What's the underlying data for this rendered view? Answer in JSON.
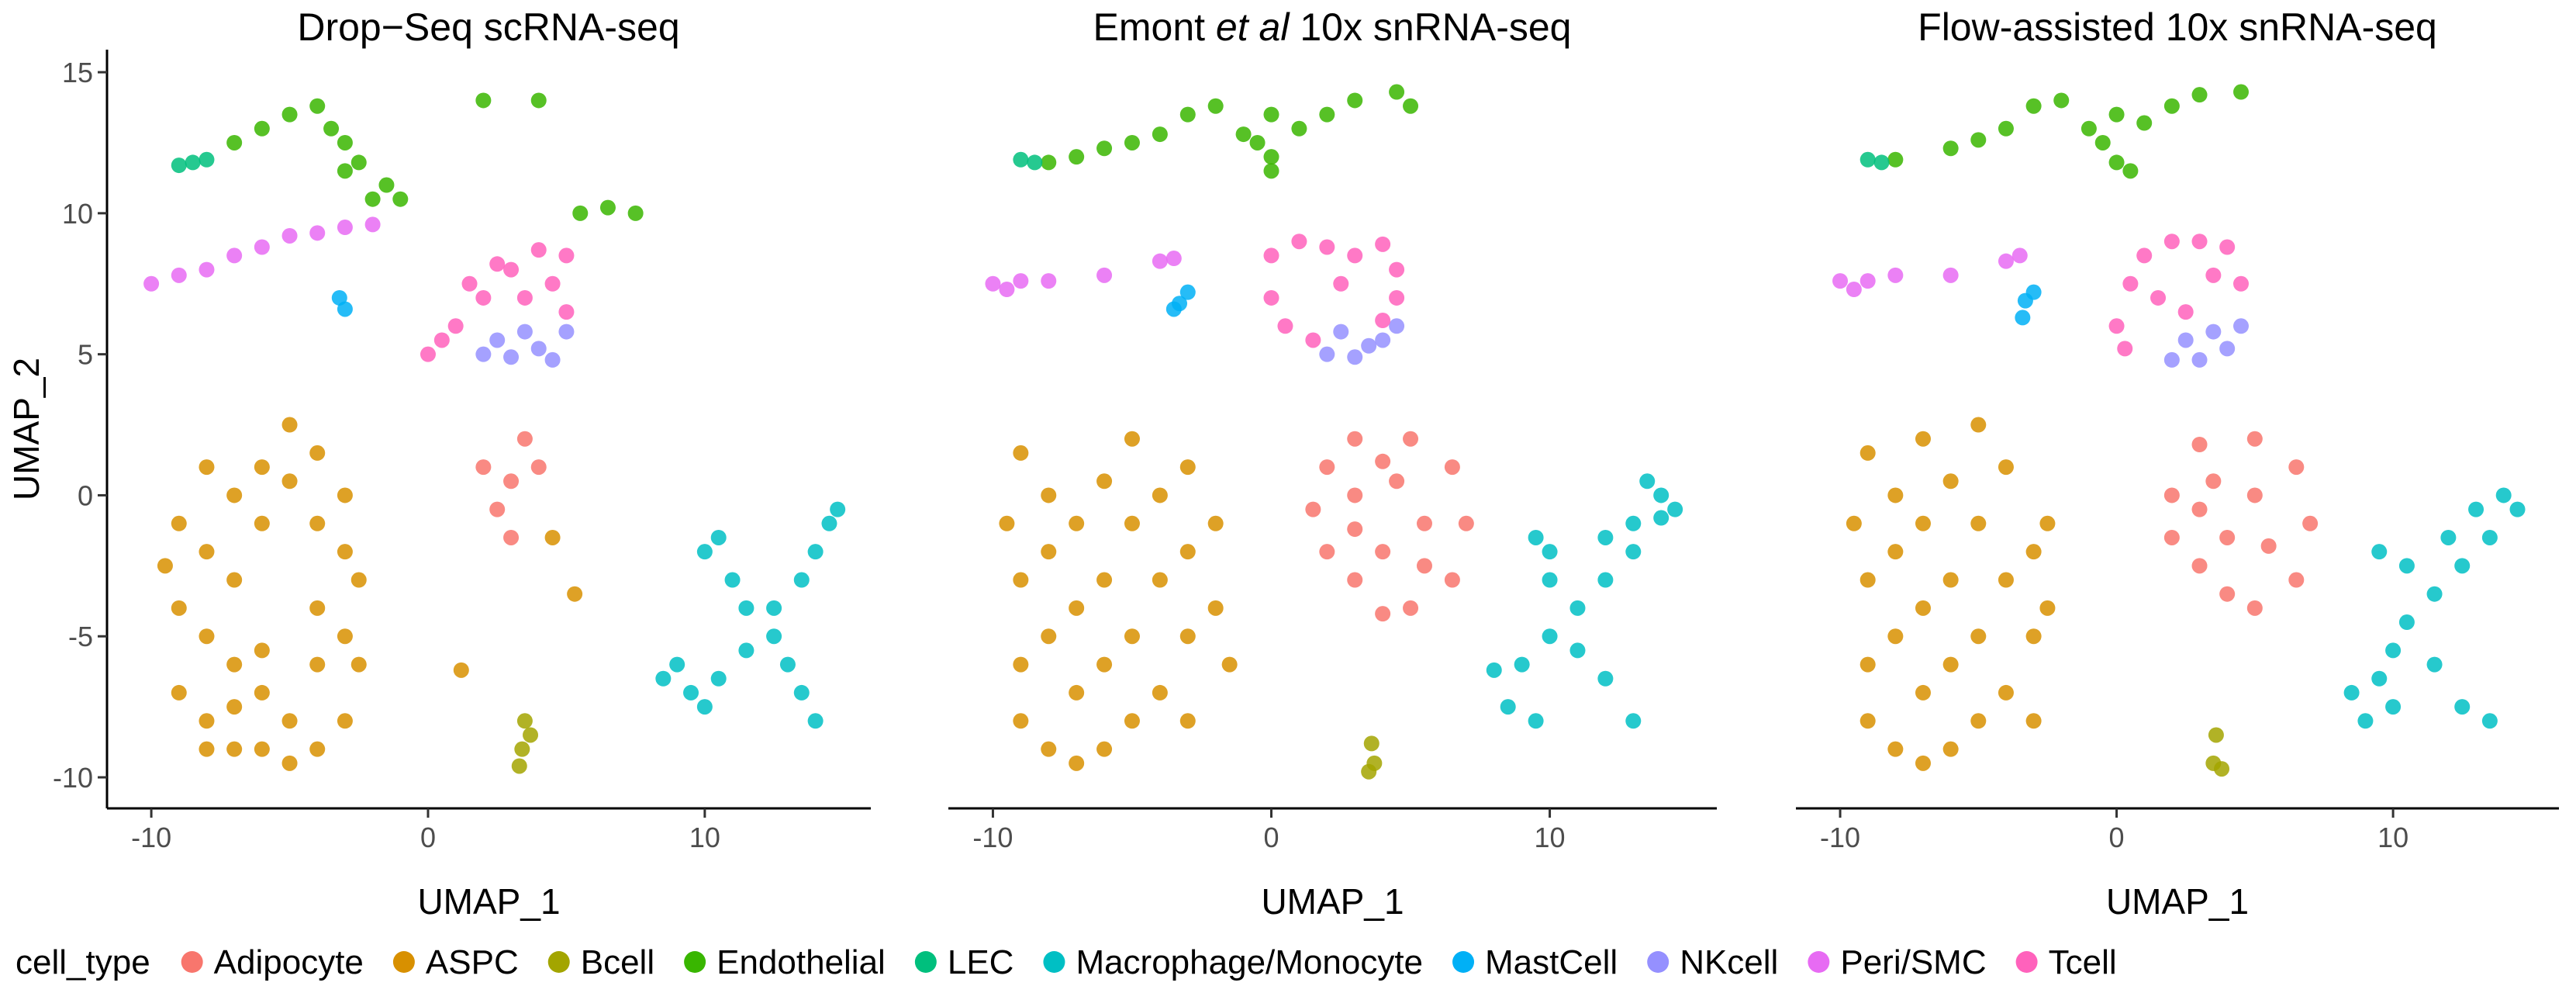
{
  "chart_data": [
    {
      "type": "scatter",
      "title": "Drop−Seq scRNA-seq",
      "xlabel": "UMAP_1",
      "ylabel": "UMAP_2",
      "xlim": [
        -11.6,
        16.0
      ],
      "ylim": [
        -11.1,
        15.8
      ],
      "xticks": [
        -10,
        0,
        10
      ],
      "yticks": [
        -10,
        -5,
        0,
        5,
        10,
        15
      ],
      "series": [
        {
          "x": [
            2,
            3,
            3.5,
            2.5,
            3,
            4
          ],
          "y": [
            1,
            0.5,
            2,
            -0.5,
            -1.5,
            1
          ]
        },
        {
          "x": [
            -9,
            -9,
            -9,
            -8,
            -8,
            -8,
            -8,
            -8,
            -7,
            -7,
            -7,
            -7,
            -6,
            -6,
            -6,
            -6,
            -5,
            -5,
            -5,
            -5,
            -4,
            -4,
            -4,
            -4,
            -4,
            -3,
            -3,
            -3,
            -3,
            -2.5,
            -2.5,
            -9.5,
            -7,
            -6,
            4.5,
            5.3,
            1.2
          ],
          "y": [
            -1,
            -4,
            -7,
            1,
            -2,
            -5,
            -8,
            -9,
            0,
            -3,
            -6,
            -9,
            1,
            -1,
            -7,
            -9,
            2.5,
            0.5,
            -8,
            -9.5,
            1.5,
            -1,
            -4,
            -6,
            -9,
            0,
            -2,
            -5,
            -8,
            -3,
            -6,
            -2.5,
            -7.5,
            -5.5,
            -1.5,
            -3.5,
            -6.2
          ]
        },
        {
          "x": [
            3.5,
            3.4,
            3.3,
            3.7
          ],
          "y": [
            -8,
            -9,
            -9.6,
            -8.5
          ]
        },
        {
          "x": [
            -5,
            -4,
            -3.5,
            -6,
            -3,
            -2,
            -2.5,
            -1.5,
            -7,
            2,
            4,
            5.5,
            6.5,
            7.5,
            -3,
            -1
          ],
          "y": [
            13.5,
            13.8,
            13,
            13,
            11.5,
            10.5,
            11.8,
            11,
            12.5,
            14,
            14,
            10,
            10.2,
            10,
            12.5,
            10.5
          ]
        },
        {
          "x": [
            -8.5,
            -8,
            -9
          ],
          "y": [
            11.8,
            11.9,
            11.7
          ]
        },
        {
          "x": [
            10,
            10.5,
            11,
            11.5,
            12.5,
            13,
            13.5,
            14,
            14.5,
            14,
            13.5,
            12.5,
            11.5,
            10.5,
            9.5,
            8.5,
            9,
            10,
            14.8
          ],
          "y": [
            -2,
            -1.5,
            -3,
            -4,
            -5,
            -6,
            -7,
            -8,
            -1,
            -2,
            -3,
            -4,
            -5.5,
            -6.5,
            -7,
            -6.5,
            -6,
            -7.5,
            -0.5
          ]
        },
        {
          "x": [
            -3.2,
            -3
          ],
          "y": [
            7,
            6.6
          ]
        },
        {
          "x": [
            2,
            3,
            4,
            5,
            3.5,
            2.5,
            4.5
          ],
          "y": [
            5,
            4.9,
            5.2,
            5.8,
            5.8,
            5.5,
            4.8
          ]
        },
        {
          "x": [
            -10,
            -9,
            -8,
            -7,
            -6,
            -5,
            -4,
            -3,
            -2
          ],
          "y": [
            7.5,
            7.8,
            8,
            8.5,
            8.8,
            9.2,
            9.3,
            9.5,
            9.6
          ]
        },
        {
          "x": [
            0,
            1,
            2,
            3,
            4,
            5,
            2.5,
            1.5,
            3.5,
            4.5,
            5,
            0.5
          ],
          "y": [
            5,
            6,
            7,
            8,
            8.7,
            8.5,
            8.2,
            7.5,
            7,
            7.5,
            6.5,
            5.5
          ]
        }
      ]
    },
    {
      "type": "scatter",
      "title": [
        "Emont ",
        "et al",
        " 10x snRNA-seq"
      ],
      "xlabel": "UMAP_1",
      "xlim": [
        -11.6,
        16.0
      ],
      "ylim": [
        -11.1,
        15.8
      ],
      "xticks": [
        -10,
        0,
        10
      ],
      "series": [
        {
          "x": [
            2,
            3,
            5,
            6.5,
            7,
            6.5,
            5,
            4,
            3,
            2,
            1.5,
            3,
            4.5,
            5.5,
            4,
            3,
            5.5,
            4
          ],
          "y": [
            1,
            2,
            2,
            1,
            -1,
            -3,
            -4,
            -4.2,
            -3,
            -2,
            -0.5,
            0,
            0.5,
            -1,
            -2,
            -1.2,
            -2.5,
            1.2
          ]
        },
        {
          "x": [
            -9.5,
            -9,
            -9,
            -9,
            -9,
            -8,
            -8,
            -8,
            -8,
            -7,
            -7,
            -7,
            -7,
            -6,
            -6,
            -6,
            -6,
            -5,
            -5,
            -5,
            -4,
            -4,
            -4,
            -3,
            -3,
            -3,
            -2,
            -2,
            -1.5,
            -5,
            -3
          ],
          "y": [
            -1,
            1.5,
            -3,
            -6,
            -8,
            0,
            -2,
            -5,
            -9,
            -1,
            -4,
            -7,
            -9.5,
            0.5,
            -3,
            -6,
            -9,
            -1,
            -5,
            -8,
            0,
            -3,
            -7,
            -2,
            -5,
            -8,
            -1,
            -4,
            -6,
            2,
            1
          ]
        },
        {
          "x": [
            3.5,
            3.7,
            3.6
          ],
          "y": [
            -9.8,
            -9.5,
            -8.8
          ]
        },
        {
          "x": [
            -8,
            -6,
            -4,
            -3,
            -2,
            0,
            0,
            0,
            -0.5,
            1,
            2,
            3,
            4.5,
            5,
            -1,
            -5,
            -7
          ],
          "y": [
            11.8,
            12.3,
            12.8,
            13.5,
            13.8,
            13.5,
            12,
            11.5,
            12.5,
            13,
            13.5,
            14,
            14.3,
            13.8,
            12.8,
            12.5,
            12
          ]
        },
        {
          "x": [
            -8.5,
            -9
          ],
          "y": [
            11.8,
            11.9
          ]
        },
        {
          "x": [
            12,
            13,
            14,
            14.5,
            13.5,
            13,
            12,
            11,
            10,
            9,
            8,
            8.5,
            9.5,
            10,
            10,
            9.5,
            11,
            12,
            13,
            14
          ],
          "y": [
            -1.5,
            -1,
            0,
            -0.5,
            0.5,
            -2,
            -3,
            -4,
            -5,
            -6,
            -6.2,
            -7.5,
            -8,
            -3,
            -2,
            -1.5,
            -5.5,
            -6.5,
            -8,
            -0.8
          ]
        },
        {
          "x": [
            -3.3,
            -3,
            -3.5
          ],
          "y": [
            6.8,
            7.2,
            6.6
          ]
        },
        {
          "x": [
            2,
            3,
            4,
            4.5,
            3.5,
            2.5
          ],
          "y": [
            5,
            4.9,
            5.5,
            6,
            5.3,
            5.8
          ]
        },
        {
          "x": [
            -10,
            -9,
            -8,
            -6,
            -4,
            -3.5,
            -9.5
          ],
          "y": [
            7.5,
            7.6,
            7.6,
            7.8,
            8.3,
            8.4,
            7.3
          ]
        },
        {
          "x": [
            0,
            0,
            1,
            2,
            3,
            4,
            4.5,
            4.5,
            4,
            0.5,
            1.5,
            2.5
          ],
          "y": [
            7,
            8.5,
            9,
            8.8,
            8.5,
            8.9,
            8,
            7,
            6.2,
            6,
            5.5,
            7.5
          ]
        }
      ]
    },
    {
      "type": "scatter",
      "title": "Flow-assisted 10x snRNA-seq",
      "xlabel": "UMAP_1",
      "xlim": [
        -11.6,
        16.0
      ],
      "ylim": [
        -11.1,
        15.8
      ],
      "xticks": [
        -10,
        0,
        10
      ],
      "series": [
        {
          "x": [
            2,
            3,
            5,
            6.5,
            7,
            6.5,
            5,
            4,
            3,
            2,
            3.5,
            5,
            4,
            5.5,
            3
          ],
          "y": [
            0,
            1.8,
            2,
            1,
            -1,
            -3,
            -4,
            -3.5,
            -2.5,
            -1.5,
            0.5,
            0,
            -1.5,
            -1.8,
            -0.5
          ]
        },
        {
          "x": [
            -9.5,
            -9,
            -9,
            -9,
            -9,
            -8,
            -8,
            -8,
            -8,
            -7,
            -7,
            -7,
            -7,
            -7,
            -6,
            -6,
            -6,
            -6,
            -5,
            -5,
            -5,
            -5,
            -4,
            -4,
            -4,
            -3,
            -3,
            -3,
            -2.5,
            -2.5
          ],
          "y": [
            -1,
            1.5,
            -3,
            -6,
            -8,
            0,
            -2,
            -5,
            -9,
            2,
            -1,
            -4,
            -7,
            -9.5,
            0.5,
            -3,
            -6,
            -9,
            2.5,
            -1,
            -5,
            -8,
            1,
            -3,
            -7,
            -2,
            -5,
            -8,
            -1,
            -4
          ]
        },
        {
          "x": [
            3.5,
            3.8,
            3.6
          ],
          "y": [
            -9.5,
            -9.7,
            -8.5
          ]
        },
        {
          "x": [
            -8,
            -6,
            -4,
            -3,
            -2,
            0,
            0,
            -0.5,
            1,
            2,
            3,
            4.5,
            -1,
            -5,
            0.5
          ],
          "y": [
            11.9,
            12.3,
            13,
            13.8,
            14,
            13.5,
            11.8,
            12.5,
            13.2,
            13.8,
            14.2,
            14.3,
            13,
            12.6,
            11.5
          ]
        },
        {
          "x": [
            -8.5,
            -9
          ],
          "y": [
            11.8,
            11.9
          ]
        },
        {
          "x": [
            12,
            13,
            14,
            14.5,
            13.5,
            12.5,
            11.5,
            10.5,
            10,
            9.5,
            8.5,
            9,
            10,
            10.5,
            9.5,
            11.5,
            12.5,
            13.5
          ],
          "y": [
            -1.5,
            -0.5,
            0,
            -0.5,
            -1.5,
            -2.5,
            -3.5,
            -4.5,
            -5.5,
            -6.5,
            -7,
            -8,
            -7.5,
            -2.5,
            -2,
            -6,
            -7.5,
            -8
          ]
        },
        {
          "x": [
            -3.3,
            -3,
            -3.4
          ],
          "y": [
            6.9,
            7.2,
            6.3
          ]
        },
        {
          "x": [
            2,
            3,
            4,
            4.5,
            3.5,
            2.5
          ],
          "y": [
            4.8,
            4.8,
            5.2,
            6,
            5.8,
            5.5
          ]
        },
        {
          "x": [
            -10,
            -9,
            -8,
            -6,
            -4,
            -3.5,
            -9.5
          ],
          "y": [
            7.6,
            7.6,
            7.8,
            7.8,
            8.3,
            8.5,
            7.3
          ]
        },
        {
          "x": [
            0,
            0.5,
            1,
            2,
            3,
            4,
            4.5,
            1.5,
            2.5,
            0.3,
            3.5
          ],
          "y": [
            6,
            7.5,
            8.5,
            9,
            9,
            8.8,
            7.5,
            7,
            6.5,
            5.2,
            7.8
          ]
        }
      ]
    }
  ],
  "legend": {
    "title": "cell_type",
    "names": [
      "Adipocyte",
      "ASPC",
      "Bcell",
      "Endothelial",
      "LEC",
      "Macrophage/Monocyte",
      "MastCell",
      "NKcell",
      "Peri/SMC",
      "Tcell"
    ],
    "colors": [
      "#F8766D",
      "#D89000",
      "#A3A500",
      "#39B600",
      "#00BF7D",
      "#00BFC4",
      "#00B0F6",
      "#9590FF",
      "#E76BF3",
      "#FF62BC"
    ]
  }
}
